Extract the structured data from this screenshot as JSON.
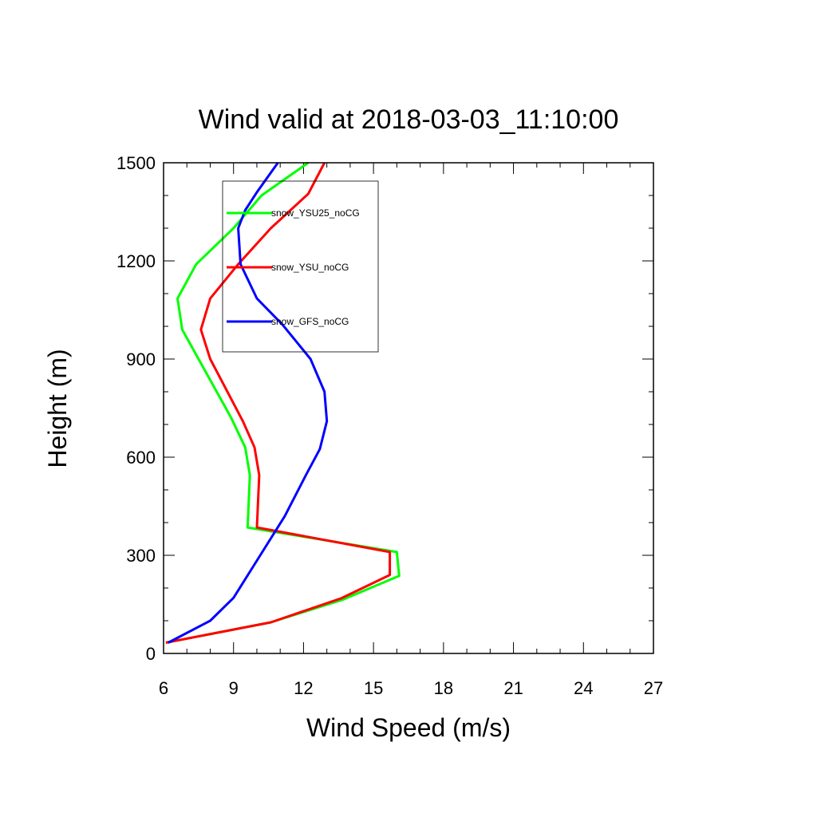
{
  "chart_data": {
    "type": "line",
    "title": "Wind valid at 2018-03-03_11:10:00",
    "xlabel": "Wind Speed (m/s)",
    "ylabel": "Height (m)",
    "xlim": [
      6,
      27
    ],
    "ylim": [
      0,
      1500
    ],
    "xticks": [
      6,
      9,
      12,
      15,
      18,
      21,
      24,
      27
    ],
    "yticks": [
      0,
      300,
      600,
      900,
      1200,
      1500
    ],
    "grid": false,
    "legend_position": "top-left",
    "series": [
      {
        "name": "snow_YSU25_noCG",
        "color": "#00ff00",
        "x": [
          6.1,
          10.6,
          13.7,
          16.1,
          16.0,
          9.6,
          9.7,
          9.5,
          8.9,
          6.8,
          6.6,
          7.4,
          9.0,
          10.2,
          12.2
        ],
        "y": [
          33,
          95,
          165,
          237,
          310,
          385,
          545,
          630,
          720,
          990,
          1085,
          1190,
          1300,
          1400,
          1500
        ]
      },
      {
        "name": "snow_YSU_noCG",
        "color": "#ff0000",
        "x": [
          6.1,
          10.6,
          13.6,
          15.7,
          15.7,
          10.0,
          10.1,
          9.9,
          9.4,
          8.0,
          7.6,
          8.0,
          9.2,
          10.6,
          12.2,
          12.9
        ],
        "y": [
          33,
          95,
          168,
          240,
          310,
          385,
          545,
          630,
          710,
          900,
          990,
          1085,
          1190,
          1300,
          1405,
          1500
        ]
      },
      {
        "name": "snow_GFS_noCG",
        "color": "#0000ff",
        "x": [
          6.2,
          8.0,
          9.0,
          10.1,
          11.2,
          12.1,
          12.7,
          13.0,
          12.9,
          12.3,
          11.1,
          10.0,
          9.3,
          9.2,
          9.5,
          10.0,
          10.9
        ],
        "y": [
          33,
          100,
          170,
          295,
          420,
          545,
          625,
          710,
          800,
          900,
          1005,
          1085,
          1190,
          1300,
          1355,
          1410,
          1500
        ]
      }
    ]
  }
}
